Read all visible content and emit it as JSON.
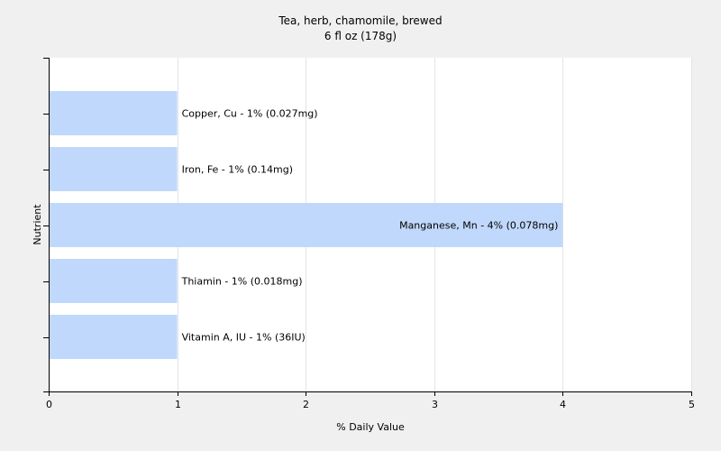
{
  "chart_data": {
    "type": "bar",
    "orientation": "horizontal",
    "title": "Tea, herb, chamomile, brewed",
    "subtitle": "6 fl oz (178g)",
    "xlabel": "% Daily Value",
    "ylabel": "Nutrient",
    "xlim": [
      0,
      5
    ],
    "xticks": [
      "0",
      "1",
      "2",
      "3",
      "4",
      "5"
    ],
    "grid": true,
    "categories": [
      "Copper, Cu",
      "Iron, Fe",
      "Manganese, Mn",
      "Thiamin",
      "Vitamin A, IU"
    ],
    "values": [
      1,
      1,
      4,
      1,
      1
    ],
    "labels": [
      "Copper, Cu - 1% (0.027mg)",
      "Iron, Fe - 1% (0.14mg)",
      "Manganese, Mn - 4% (0.078mg)",
      "Thiamin - 1% (0.018mg)",
      "Vitamin A, IU - 1% (36IU)"
    ],
    "colors": {
      "bar": "#c0d8fc",
      "background": "#f0f0f0",
      "plot_background": "#ffffff",
      "grid": "#e4e4e4",
      "axis": "#000000"
    }
  }
}
